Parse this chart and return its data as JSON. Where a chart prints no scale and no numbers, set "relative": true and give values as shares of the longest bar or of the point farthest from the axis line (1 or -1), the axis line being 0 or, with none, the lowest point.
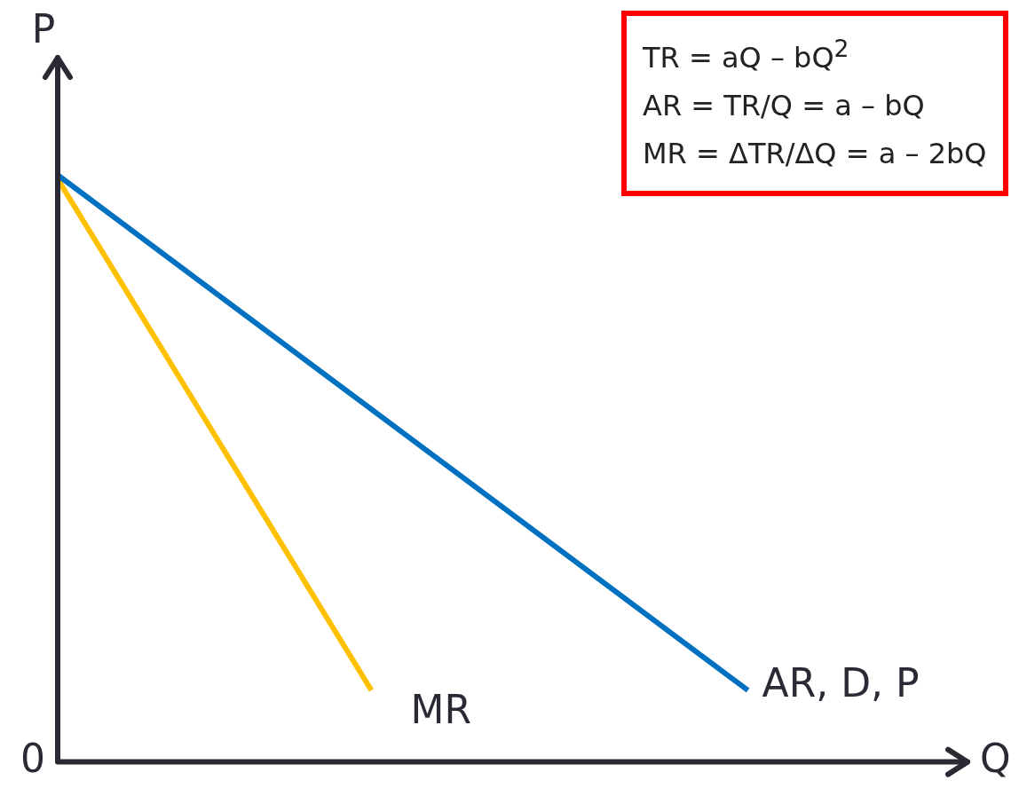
{
  "chart_data": {
    "type": "line",
    "relative": true,
    "xlabel": "Q",
    "ylabel": "P",
    "categories": [
      null,
      null,
      null,
      null,
      null,
      null,
      null,
      null,
      null,
      null,
      null,
      null,
      null,
      null,
      null,
      null,
      null,
      null,
      null,
      null,
      null,
      null,
      null,
      null,
      null,
      null,
      null,
      null,
      null,
      null
    ],
    "series": [
      {
        "name": "AR, D, P",
        "color": "#0070c0",
        "values": [
          1,
          null,
          null,
          null,
          null,
          null,
          null,
          null,
          null,
          null,
          null,
          null,
          null,
          null,
          null,
          null,
          null,
          null,
          null,
          null,
          null,
          null,
          0.122,
          null,
          null,
          null,
          null,
          null,
          null,
          null
        ]
      },
      {
        "name": "MR",
        "color": "#ffc000",
        "values": [
          0.993,
          null,
          null,
          null,
          null,
          null,
          null,
          null,
          null,
          null,
          0.122,
          null,
          null,
          null,
          null,
          null,
          null,
          null,
          null,
          null,
          null,
          null,
          null,
          null,
          null,
          null,
          null,
          null,
          null,
          null
        ]
      }
    ],
    "annotations": [
      "0",
      "TR = aQ – bQ$^{2}$",
      "AR = TR/Q = a – bQ",
      "MR = ΔTR/ΔQ = a – 2bQ"
    ],
    "legend": false,
    "grid": false,
    "marker": "none",
    "line_style": "solid"
  }
}
